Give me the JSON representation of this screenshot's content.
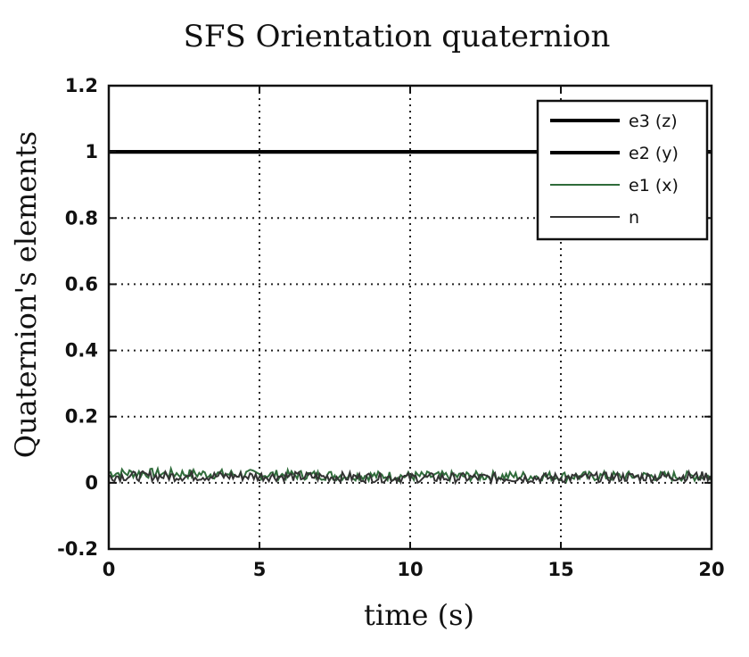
{
  "chart_data": {
    "type": "line",
    "title": "SFS Orientation quaternion",
    "xlabel": "time (s)",
    "ylabel": "Quaternion's elements",
    "xlim": [
      0,
      20
    ],
    "ylim": [
      -0.2,
      1.2
    ],
    "xticks": [
      0,
      5,
      10,
      15,
      20
    ],
    "xtick_labels": [
      "0",
      "5",
      "10",
      "15",
      "20"
    ],
    "yticks": [
      -0.2,
      0,
      0.2,
      0.4,
      0.6,
      0.8,
      1,
      1.2
    ],
    "ytick_labels": [
      "-0.2",
      "0",
      "0.2",
      "0.4",
      "0.6",
      "0.8",
      "1",
      "1.2"
    ],
    "grid": true,
    "legend_position": "top-right",
    "series": [
      {
        "name": "e3 (z)",
        "x": [
          0,
          20
        ],
        "y": [
          1,
          1
        ],
        "color": "#000000",
        "width": 4,
        "noisy": false
      },
      {
        "name": "e2 (y)",
        "x": [
          0,
          20
        ],
        "y": [
          1,
          1
        ],
        "color": "#000000",
        "width": 4,
        "noisy": false
      },
      {
        "name": "e1 (x)",
        "x": [
          0,
          5,
          10,
          15,
          20
        ],
        "y": [
          0.03,
          0.025,
          0.02,
          0.02,
          0.02
        ],
        "color": "#2f6b3a",
        "width": 2,
        "noisy": true
      },
      {
        "name": "n",
        "x": [
          0,
          5,
          10,
          15,
          20
        ],
        "y": [
          0.02,
          0.02,
          0.015,
          0.015,
          0.02
        ],
        "color": "#333333",
        "width": 2,
        "noisy": true
      }
    ]
  }
}
